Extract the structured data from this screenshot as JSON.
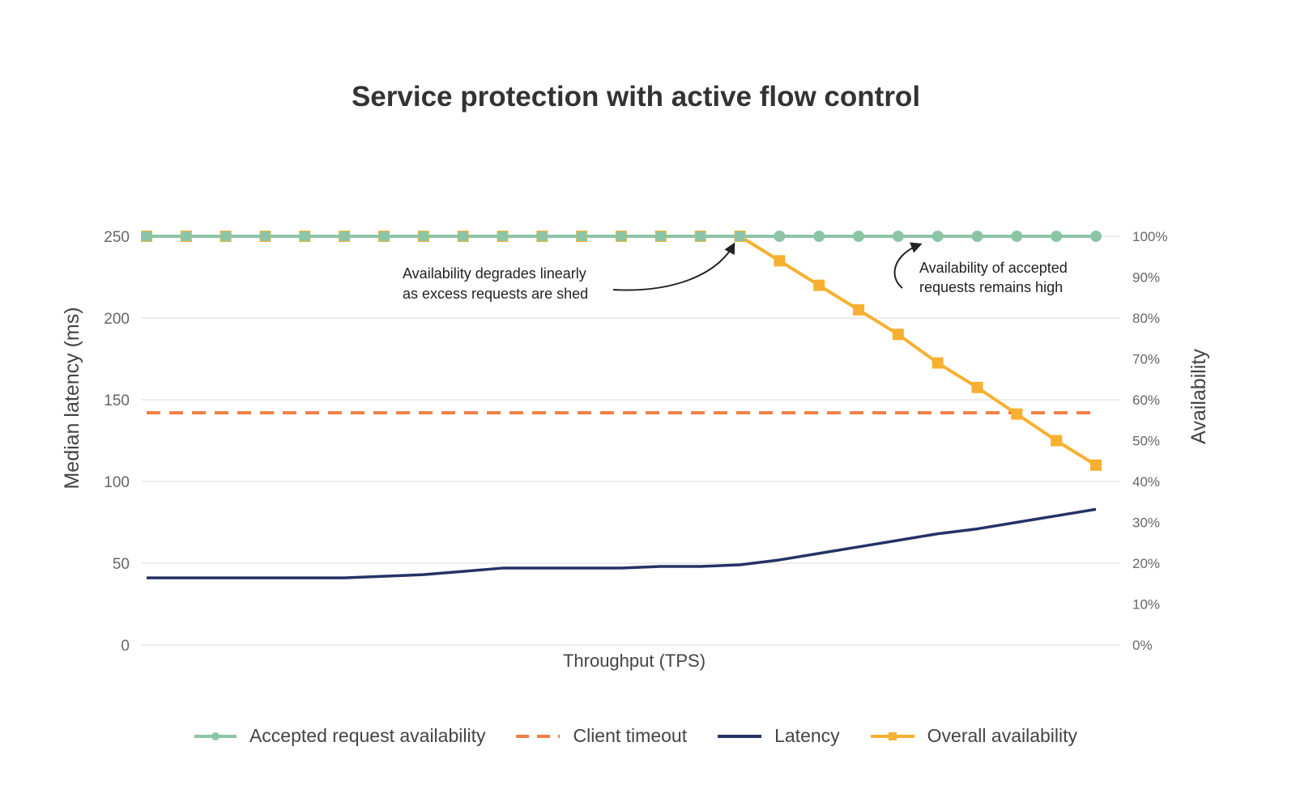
{
  "chart_data": {
    "type": "line",
    "title": "Service protection with active flow control",
    "xlabel": "Throughput (TPS)",
    "ylabel": "Median latency (ms)",
    "y2label": "Availability",
    "ylim": [
      0,
      250
    ],
    "y2lim": [
      0,
      100
    ],
    "yticks": [
      "0",
      "50",
      "100",
      "150",
      "200",
      "250"
    ],
    "y2ticks": [
      "0%",
      "10%",
      "20%",
      "30%",
      "40%",
      "50%",
      "60%",
      "70%",
      "80%",
      "90%",
      "100%"
    ],
    "grid": true,
    "legend_position": "bottom",
    "point_count": 25,
    "series": [
      {
        "name": "Accepted request availability",
        "axis": "right",
        "color": "#8cc5a6",
        "style": "solid-circle-markers",
        "values": [
          100,
          100,
          100,
          100,
          100,
          100,
          100,
          100,
          100,
          100,
          100,
          100,
          100,
          100,
          100,
          100,
          100,
          100,
          100,
          100,
          100,
          100,
          100,
          100,
          100
        ]
      },
      {
        "name": "Client timeout",
        "axis": "left",
        "color": "#f07f45",
        "style": "dashed",
        "values": [
          142,
          142,
          142,
          142,
          142,
          142,
          142,
          142,
          142,
          142,
          142,
          142,
          142,
          142,
          142,
          142,
          142,
          142,
          142,
          142,
          142,
          142,
          142,
          142,
          142
        ]
      },
      {
        "name": "Latency",
        "axis": "left",
        "color": "#263266",
        "style": "solid",
        "values": [
          41,
          41,
          41,
          41,
          41,
          41,
          42,
          43,
          45,
          47,
          47,
          47,
          47,
          48,
          48,
          49,
          52,
          56,
          60,
          64,
          68,
          71,
          75,
          79,
          83
        ]
      },
      {
        "name": "Overall availability",
        "axis": "right",
        "color": "#f7b031",
        "style": "solid-square-markers",
        "values": [
          100,
          100,
          100,
          100,
          100,
          100,
          100,
          100,
          100,
          100,
          100,
          100,
          100,
          100,
          100,
          100,
          94,
          88,
          82,
          76,
          69,
          63,
          56.5,
          50,
          44
        ]
      }
    ],
    "annotations": [
      {
        "lines": [
          "Availability degrades linearly",
          "as excess requests are shed"
        ],
        "target_index": 15,
        "target_series": "Overall availability"
      },
      {
        "lines": [
          "Availability of accepted",
          "requests remains high"
        ],
        "target_index": 20,
        "target_series": "Accepted request availability"
      }
    ]
  }
}
